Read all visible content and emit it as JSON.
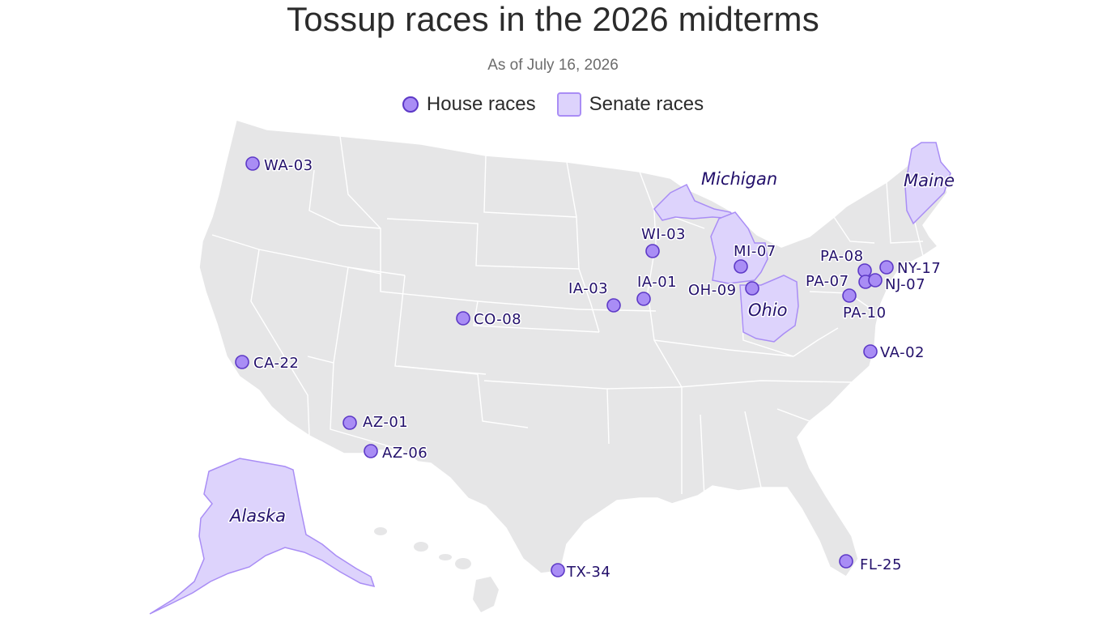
{
  "title": "Tossup races in the 2026 midterms",
  "subtitle": "As of July 16, 2026",
  "legend": {
    "house_label": "House races",
    "senate_label": "Senate races"
  },
  "colors": {
    "land": "#e6e6e7",
    "border": "#ffffff",
    "senate_fill": "#ddd3fc",
    "senate_stroke": "#a98df5",
    "house_fill": "#a98df5",
    "house_stroke": "#5d39c7",
    "label": "#23106b"
  },
  "senate_races": [
    "Alaska",
    "Michigan",
    "Ohio",
    "Maine"
  ],
  "house_races": [
    "WA-03",
    "CA-22",
    "AZ-01",
    "AZ-06",
    "CO-08",
    "TX-34",
    "IA-03",
    "IA-01",
    "WI-03",
    "MI-07",
    "OH-09",
    "PA-08",
    "PA-07",
    "PA-10",
    "NY-17",
    "NJ-07",
    "VA-02",
    "FL-25"
  ]
}
